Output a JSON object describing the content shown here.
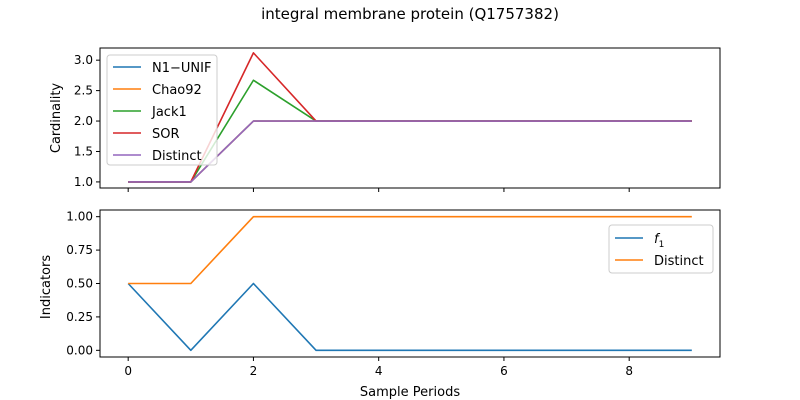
{
  "figure": {
    "title": "integral membrane protein (Q1757382)"
  },
  "chart_data": [
    {
      "type": "line",
      "title": "integral membrane protein (Q1757382)",
      "xlabel": "",
      "ylabel": "Cardinality",
      "xlim": [
        -0.45,
        9.45
      ],
      "ylim": [
        0.9,
        3.2
      ],
      "xticks": [
        0,
        2,
        4,
        6,
        8
      ],
      "yticks": [
        1.0,
        1.5,
        2.0,
        2.5,
        3.0
      ],
      "ytick_labels": [
        "1.0",
        "1.5",
        "2.0",
        "2.5",
        "3.0"
      ],
      "show_x_tick_labels": false,
      "grid": false,
      "legend_position": "upper-left",
      "x": [
        0,
        1,
        2,
        3,
        4,
        5,
        6,
        7,
        8,
        9
      ],
      "series": [
        {
          "name": "N1−UNIF",
          "color": "#1f77b4",
          "values": [
            1,
            1,
            2,
            2,
            2,
            2,
            2,
            2,
            2,
            2
          ]
        },
        {
          "name": "Chao92",
          "color": "#ff7f0e",
          "values": [
            1,
            1,
            2,
            2,
            2,
            2,
            2,
            2,
            2,
            2
          ]
        },
        {
          "name": "Jack1",
          "color": "#2ca02c",
          "values": [
            1,
            1,
            2.67,
            2,
            2,
            2,
            2,
            2,
            2,
            2
          ]
        },
        {
          "name": "SOR",
          "color": "#d62728",
          "values": [
            1,
            1,
            3.12,
            2,
            2,
            2,
            2,
            2,
            2,
            2
          ]
        },
        {
          "name": "Distinct",
          "color": "#9467bd",
          "values": [
            1,
            1,
            2,
            2,
            2,
            2,
            2,
            2,
            2,
            2
          ]
        }
      ]
    },
    {
      "type": "line",
      "title": "",
      "xlabel": "Sample Periods",
      "ylabel": "Indicators",
      "xlim": [
        -0.45,
        9.45
      ],
      "ylim": [
        -0.05,
        1.05
      ],
      "xticks": [
        0,
        2,
        4,
        6,
        8
      ],
      "xtick_labels": [
        "0",
        "2",
        "4",
        "6",
        "8"
      ],
      "yticks": [
        0.0,
        0.25,
        0.5,
        0.75,
        1.0
      ],
      "ytick_labels": [
        "0.00",
        "0.25",
        "0.50",
        "0.75",
        "1.00"
      ],
      "grid": false,
      "legend_position": "upper-right",
      "x": [
        0,
        1,
        2,
        3,
        4,
        5,
        6,
        7,
        8,
        9
      ],
      "series": [
        {
          "name": "f",
          "name_subscript": "1",
          "color": "#1f77b4",
          "values": [
            0.5,
            0,
            0.5,
            0,
            0,
            0,
            0,
            0,
            0,
            0
          ]
        },
        {
          "name": "Distinct",
          "color": "#ff7f0e",
          "values": [
            0.5,
            0.5,
            1,
            1,
            1,
            1,
            1,
            1,
            1,
            1
          ]
        }
      ]
    }
  ]
}
